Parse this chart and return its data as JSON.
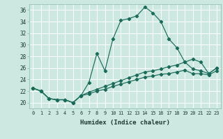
{
  "xlabel": "Humidex (Indice chaleur)",
  "background_color": "#cde8e0",
  "grid_color": "#ffffff",
  "line_color": "#1a6b5a",
  "xlim": [
    -0.5,
    23.5
  ],
  "ylim": [
    19,
    37
  ],
  "xticks": [
    0,
    1,
    2,
    3,
    4,
    5,
    6,
    7,
    8,
    9,
    10,
    11,
    12,
    13,
    14,
    15,
    16,
    17,
    18,
    19,
    20,
    21,
    22,
    23
  ],
  "yticks": [
    20,
    22,
    24,
    26,
    28,
    30,
    32,
    34,
    36
  ],
  "series": [
    {
      "x": [
        0,
        1,
        2,
        3,
        4,
        5,
        6,
        7,
        8,
        9,
        10,
        11,
        12,
        13,
        14,
        15,
        16,
        17,
        18,
        19,
        20,
        21,
        22,
        23
      ],
      "y": [
        22.5,
        22.0,
        20.7,
        20.5,
        20.5,
        20.0,
        21.2,
        23.5,
        28.5,
        25.5,
        31.0,
        34.2,
        34.5,
        35.0,
        36.5,
        35.5,
        34.0,
        31.0,
        29.5,
        27.0,
        27.5,
        27.0,
        25.0,
        26.0
      ]
    },
    {
      "x": [
        0,
        1,
        2,
        3,
        4,
        5,
        6,
        7,
        8,
        9,
        10,
        11,
        12,
        13,
        14,
        15,
        16,
        17,
        18,
        19,
        20,
        21,
        22,
        23
      ],
      "y": [
        22.5,
        22.0,
        20.7,
        20.5,
        20.5,
        20.0,
        21.2,
        21.8,
        22.3,
        22.8,
        23.3,
        23.8,
        24.3,
        24.8,
        25.3,
        25.5,
        25.8,
        26.2,
        26.5,
        27.0,
        25.8,
        25.5,
        25.0,
        26.0
      ]
    },
    {
      "x": [
        0,
        1,
        2,
        3,
        4,
        5,
        6,
        7,
        8,
        9,
        10,
        11,
        12,
        13,
        14,
        15,
        16,
        17,
        18,
        19,
        20,
        21,
        22,
        23
      ],
      "y": [
        22.5,
        22.0,
        20.7,
        20.5,
        20.5,
        20.0,
        21.2,
        21.5,
        22.0,
        22.3,
        22.8,
        23.2,
        23.6,
        24.0,
        24.4,
        24.6,
        24.9,
        25.0,
        25.3,
        25.6,
        25.0,
        25.0,
        24.8,
        25.5
      ]
    }
  ]
}
